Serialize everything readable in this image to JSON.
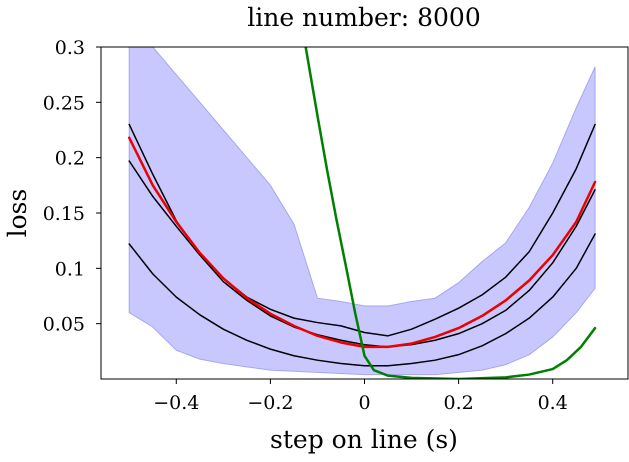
{
  "chart_data": {
    "type": "line",
    "title": "line number: 8000",
    "xlabel": "step on line (s)",
    "ylabel": "loss",
    "xlim": [
      -0.56,
      0.56
    ],
    "ylim": [
      0.0,
      0.3
    ],
    "grid": false,
    "x_ticks": [
      -0.4,
      -0.2,
      0.0,
      0.2,
      0.4
    ],
    "x_tick_labels": [
      "−0.4",
      "−0.2",
      "0",
      "0.2",
      "0.4"
    ],
    "y_ticks": [
      0.05,
      0.1,
      0.15,
      0.2,
      0.25,
      0.3
    ],
    "y_tick_labels": [
      "0.05",
      "0.1",
      "0.15",
      "0.2",
      "0.25",
      "0.3"
    ],
    "colors": {
      "band_fill": "#c8c8ff",
      "band_edge": "#a6a6f0",
      "quantile_lines": "#000000",
      "fit": "#ee0000",
      "derivative": "#008000"
    },
    "band": {
      "x": [
        -0.5,
        -0.45,
        -0.4,
        -0.35,
        -0.3,
        -0.25,
        -0.2,
        -0.15,
        -0.1,
        -0.05,
        0.0,
        0.05,
        0.1,
        0.15,
        0.2,
        0.25,
        0.3,
        0.35,
        0.4,
        0.45,
        0.49
      ],
      "upper": [
        0.3,
        0.3,
        0.275,
        0.25,
        0.225,
        0.2,
        0.175,
        0.14,
        0.073,
        0.07,
        0.066,
        0.066,
        0.07,
        0.073,
        0.087,
        0.106,
        0.123,
        0.155,
        0.195,
        0.245,
        0.282
      ],
      "lower": [
        0.06,
        0.047,
        0.026,
        0.018,
        0.014,
        0.011,
        0.008,
        0.007,
        0.006,
        0.005,
        0.004,
        0.004,
        0.004,
        0.004,
        0.006,
        0.008,
        0.013,
        0.022,
        0.038,
        0.06,
        0.082
      ]
    },
    "series": [
      {
        "x": [
          -0.5,
          -0.45,
          -0.4,
          -0.35,
          -0.3,
          -0.25,
          -0.2,
          -0.15,
          -0.1,
          -0.05,
          0.0,
          0.05,
          0.1,
          0.15,
          0.2,
          0.25,
          0.3,
          0.35,
          0.4,
          0.45,
          0.49
        ],
        "values": [
          0.23,
          0.185,
          0.143,
          0.113,
          0.091,
          0.074,
          0.063,
          0.055,
          0.051,
          0.048,
          0.042,
          0.039,
          0.045,
          0.054,
          0.064,
          0.076,
          0.092,
          0.115,
          0.15,
          0.19,
          0.23
        ]
      },
      {
        "x": [
          -0.5,
          -0.45,
          -0.4,
          -0.35,
          -0.3,
          -0.25,
          -0.2,
          -0.15,
          -0.1,
          -0.05,
          0.0,
          0.05,
          0.1,
          0.15,
          0.2,
          0.25,
          0.3,
          0.35,
          0.4,
          0.45,
          0.49
        ],
        "values": [
          0.197,
          0.165,
          0.138,
          0.112,
          0.088,
          0.071,
          0.057,
          0.047,
          0.04,
          0.035,
          0.031,
          0.029,
          0.031,
          0.035,
          0.041,
          0.05,
          0.062,
          0.08,
          0.105,
          0.138,
          0.171
        ]
      },
      {
        "x": [
          -0.5,
          -0.45,
          -0.4,
          -0.35,
          -0.3,
          -0.25,
          -0.2,
          -0.15,
          -0.1,
          -0.05,
          0.0,
          0.05,
          0.1,
          0.15,
          0.2,
          0.25,
          0.3,
          0.35,
          0.4,
          0.45,
          0.49
        ],
        "values": [
          0.122,
          0.095,
          0.074,
          0.058,
          0.045,
          0.035,
          0.027,
          0.021,
          0.017,
          0.014,
          0.012,
          0.012,
          0.014,
          0.017,
          0.022,
          0.03,
          0.041,
          0.055,
          0.074,
          0.1,
          0.131
        ]
      },
      {
        "x": [
          -0.5,
          -0.45,
          -0.4,
          -0.35,
          -0.3,
          -0.25,
          -0.2,
          -0.15,
          -0.1,
          -0.05,
          0.0,
          0.05,
          0.1,
          0.15,
          0.2,
          0.25,
          0.3,
          0.35,
          0.4,
          0.45,
          0.49
        ],
        "values": [
          0.218,
          0.175,
          0.142,
          0.114,
          0.091,
          0.073,
          0.059,
          0.048,
          0.039,
          0.033,
          0.029,
          0.029,
          0.032,
          0.038,
          0.046,
          0.057,
          0.071,
          0.089,
          0.112,
          0.142,
          0.178
        ]
      },
      {
        "x": [
          -0.125,
          -0.1,
          -0.08,
          -0.06,
          -0.04,
          -0.02,
          0.0,
          0.02,
          0.05,
          0.1,
          0.2,
          0.3,
          0.35,
          0.4,
          0.43,
          0.46,
          0.49
        ],
        "values": [
          0.3,
          0.238,
          0.19,
          0.145,
          0.103,
          0.06,
          0.021,
          0.008,
          0.003,
          0.001,
          0.0,
          0.0015,
          0.004,
          0.009,
          0.017,
          0.029,
          0.046
        ]
      }
    ]
  }
}
